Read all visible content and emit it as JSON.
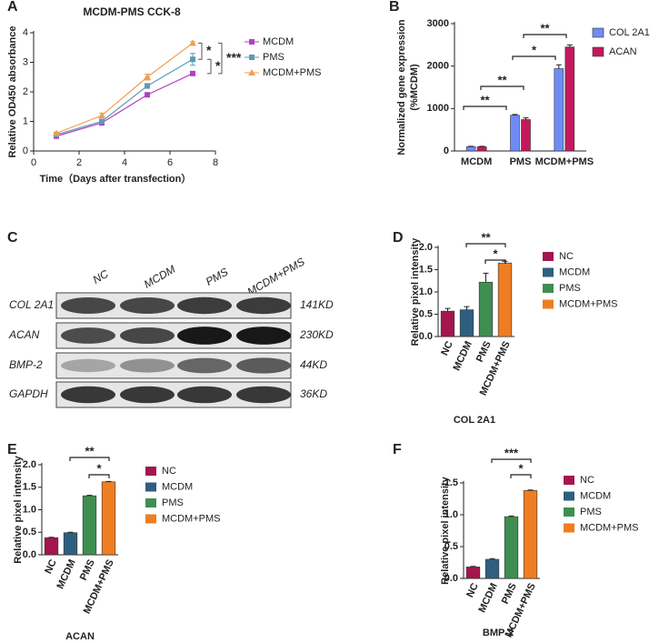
{
  "chart_data": [
    {
      "type": "line",
      "panel_label": "A",
      "title": "MCDM-PMS CCK-8",
      "xlabel": "Time（Days after transfection）",
      "ylabel": "Relative OD450 absorbance",
      "x": [
        1,
        3,
        5,
        7
      ],
      "xlim": [
        0,
        8
      ],
      "xticks": [
        0,
        2,
        4,
        6,
        8
      ],
      "ylim": [
        0,
        4
      ],
      "yticks": [
        0,
        1,
        2,
        3,
        4
      ],
      "series": [
        {
          "name": "MCDM",
          "color": "#b43fc6",
          "marker": "square",
          "values": [
            0.5,
            0.95,
            1.9,
            2.62
          ],
          "errors": [
            0.04,
            0.05,
            0.05,
            0.05
          ]
        },
        {
          "name": "PMS",
          "color": "#5b9bb5",
          "marker": "square",
          "values": [
            0.55,
            1.0,
            2.2,
            3.1
          ],
          "errors": [
            0.04,
            0.05,
            0.08,
            0.2
          ]
        },
        {
          "name": "MCDM+PMS",
          "color": "#f0a050",
          "marker": "triangle",
          "values": [
            0.6,
            1.2,
            2.5,
            3.65
          ],
          "errors": [
            0.04,
            0.08,
            0.1,
            0.05
          ]
        }
      ],
      "annotations": [
        "*",
        "*",
        "***"
      ]
    },
    {
      "type": "bar",
      "panel_label": "B",
      "ylabel": [
        "Normalized gene expression",
        "(%MCDM)"
      ],
      "categories": [
        "MCDM",
        "PMS",
        "MCDM+PMS"
      ],
      "ylim": [
        0,
        3000
      ],
      "yticks": [
        0,
        1000,
        2000,
        3000
      ],
      "series": [
        {
          "name": "COL 2A1",
          "color": "#6f8cf6",
          "values": [
            100,
            840,
            1940
          ],
          "errors": [
            10,
            20,
            90
          ]
        },
        {
          "name": "ACAN",
          "color": "#c3195c",
          "values": [
            100,
            740,
            2450
          ],
          "errors": [
            10,
            40,
            50
          ]
        }
      ],
      "annotations": [
        "**",
        "**",
        "*",
        "**"
      ]
    },
    {
      "type": "bar",
      "panel_label": "D",
      "ylabel": "Relative pixel intensity",
      "xlabel": "COL 2A1",
      "categories": [
        "NC",
        "MCDM",
        "PMS",
        "MCDM+PMS"
      ],
      "colors": [
        "#a3164f",
        "#2f5f7f",
        "#3e8e52",
        "#ef7d22"
      ],
      "values": [
        0.57,
        0.6,
        1.22,
        1.65
      ],
      "errors": [
        0.06,
        0.07,
        0.2,
        0.04
      ],
      "ylim": [
        0,
        2
      ],
      "yticks": [
        {
          "value": 0,
          "label": "0.0"
        },
        0.5,
        {
          "value": 1,
          "label": "1.0"
        },
        1.5,
        {
          "value": 2,
          "label": "2.0"
        }
      ],
      "annotations": [
        "**",
        "*"
      ]
    },
    {
      "type": "bar",
      "panel_label": "E",
      "ylabel": "Relative pixel intensity",
      "xlabel": "ACAN",
      "categories": [
        "NC",
        "MCDM",
        "PMS",
        "MCDM+PMS"
      ],
      "colors": [
        "#a3164f",
        "#2f5f7f",
        "#3e8e52",
        "#ef7d22"
      ],
      "values": [
        0.38,
        0.49,
        1.31,
        1.62
      ],
      "errors": [
        0.01,
        0.01,
        0.01,
        0.01
      ],
      "ylim": [
        0,
        2
      ],
      "yticks": [
        {
          "value": 0,
          "label": "0.0"
        },
        0.5,
        {
          "value": 1,
          "label": "1.0"
        },
        1.5,
        {
          "value": 2,
          "label": "2.0"
        }
      ],
      "annotations": [
        "**",
        "*"
      ]
    },
    {
      "type": "bar",
      "panel_label": "F",
      "ylabel": "Relative pixel intensity",
      "xlabel": "BMP-2",
      "categories": [
        "NC",
        "MCDM",
        "PMS",
        "MCDM+PMS"
      ],
      "colors": [
        "#a3164f",
        "#2f5f7f",
        "#3e8e52",
        "#ef7d22"
      ],
      "values": [
        0.18,
        0.3,
        0.97,
        1.38
      ],
      "errors": [
        0.01,
        0.01,
        0.01,
        0.01
      ],
      "ylim": [
        0,
        1.5
      ],
      "yticks": [
        {
          "value": 0,
          "label": "0.0"
        },
        0.5,
        {
          "value": 1,
          "label": "1.0"
        },
        1.5
      ],
      "annotations": [
        "***",
        "*"
      ]
    }
  ],
  "blot": {
    "panel_label": "C",
    "lanes": [
      "NC",
      "MCDM",
      "PMS",
      "MCDM+PMS"
    ],
    "rows": [
      {
        "protein": "COL 2A1",
        "size": "141KD"
      },
      {
        "protein": "ACAN",
        "size": "230KD"
      },
      {
        "protein": "BMP-2",
        "size": "44KD"
      },
      {
        "protein": "GAPDH",
        "size": "36KD"
      }
    ]
  }
}
